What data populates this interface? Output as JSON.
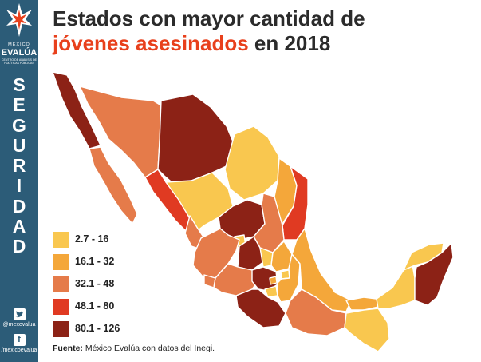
{
  "title": {
    "line1": "Estados con mayor cantidad de",
    "line2_accent": "jóvenes asesinados",
    "line2_rest": " en 2018"
  },
  "brand": {
    "top": "MÉXICO",
    "name": "EVALÚA",
    "subtitle": "CENTRO DE ANÁLISIS DE POLÍTICAS PÚBLICAS"
  },
  "section_letters": [
    "S",
    "E",
    "G",
    "U",
    "R",
    "I",
    "D",
    "A",
    "D"
  ],
  "social": {
    "twitter_handle": "@mexevalua",
    "facebook_handle": "/mexicoevalua"
  },
  "legend": [
    {
      "label": "2.7 - 16",
      "color": "#f9c74f"
    },
    {
      "label": "16.1 - 32",
      "color": "#f4a73a"
    },
    {
      "label": "32.1 - 48",
      "color": "#e57b4a"
    },
    {
      "label": "48.1 - 80",
      "color": "#e03a22"
    },
    {
      "label": "80.1 - 126",
      "color": "#8c2216"
    }
  ],
  "source": {
    "label": "Fuente:",
    "text": " México Evalúa con datos del Inegi."
  },
  "colors": {
    "sidebar": "#2c5c78",
    "accent": "#e8401c",
    "title": "#2b2b2b"
  }
}
